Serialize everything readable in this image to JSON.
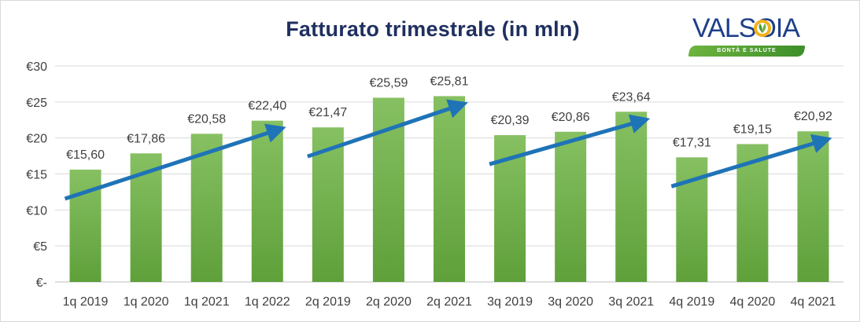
{
  "chart_data": {
    "type": "bar",
    "title": "Fatturato trimestrale (in mln)",
    "categories": [
      "1q 2019",
      "1q 2020",
      "1q 2021",
      "1q 2022",
      "2q 2019",
      "2q 2020",
      "2q 2021",
      "3q 2019",
      "3q 2020",
      "3q 2021",
      "4q 2019",
      "4q 2020",
      "4q 2021"
    ],
    "values": [
      15.6,
      17.86,
      20.58,
      22.4,
      21.47,
      25.59,
      25.81,
      20.39,
      20.86,
      23.64,
      17.31,
      19.15,
      20.92
    ],
    "data_labels": [
      "€15,60",
      "€17,86",
      "€20,58",
      "€22,40",
      "€21,47",
      "€25,59",
      "€25,81",
      "€20,39",
      "€20,86",
      "€23,64",
      "€17,31",
      "€19,15",
      "€20,92"
    ],
    "y_ticks": [
      0,
      5,
      10,
      15,
      20,
      25,
      30
    ],
    "y_tick_labels": [
      "€-",
      "€5",
      "€10",
      "€15",
      "€20",
      "€25",
      "€30"
    ],
    "ylim": [
      0,
      30
    ],
    "xlabel": "",
    "ylabel": "",
    "grid": true,
    "bar_color_top": "#86c062",
    "bar_color_bottom": "#5fa03a",
    "arrow_color": "#1f73b7",
    "trend_arrows": [
      {
        "from_category": "1q 2019",
        "to_category": "1q 2022"
      },
      {
        "from_category": "2q 2019",
        "to_category": "2q 2021"
      },
      {
        "from_category": "3q 2019",
        "to_category": "3q 2021"
      },
      {
        "from_category": "4q 2019",
        "to_category": "4q 2021"
      }
    ]
  },
  "logo": {
    "brand": "VALSOIA",
    "slogan": "BONTÀ E SALUTE",
    "brand_color": "#1e3f8a",
    "band_color": "#4a9a30"
  }
}
